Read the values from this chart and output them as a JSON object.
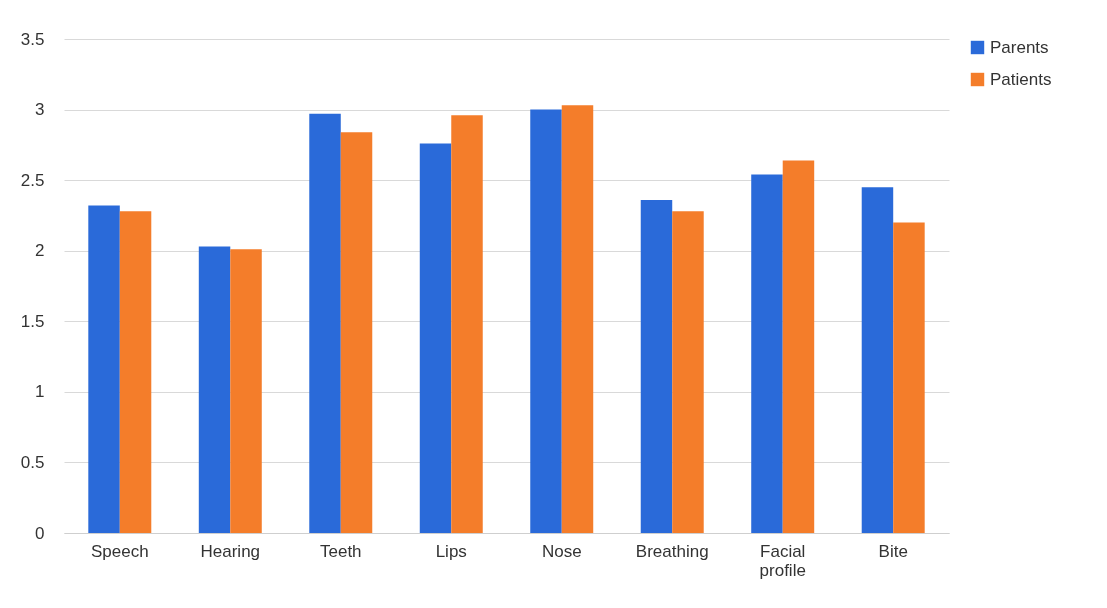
{
  "chart_data": {
    "type": "bar",
    "categories": [
      "Speech",
      "Hearing",
      "Teeth",
      "Lips",
      "Nose",
      "Breathing",
      "Facial profile",
      "Bite"
    ],
    "series": [
      {
        "name": "Parents",
        "color": "#2a6ad9",
        "values": [
          2.32,
          2.03,
          2.97,
          2.76,
          3.0,
          2.36,
          2.54,
          2.45
        ]
      },
      {
        "name": "Patients",
        "color": "#f47d2a",
        "values": [
          2.28,
          2.01,
          2.84,
          2.96,
          3.03,
          2.28,
          2.64,
          2.2
        ]
      }
    ],
    "ylim": [
      0,
      3.5
    ],
    "yticks": [
      0,
      0.5,
      1,
      1.5,
      2,
      2.5,
      3,
      3.5
    ],
    "grid": "y",
    "legend": "right"
  }
}
